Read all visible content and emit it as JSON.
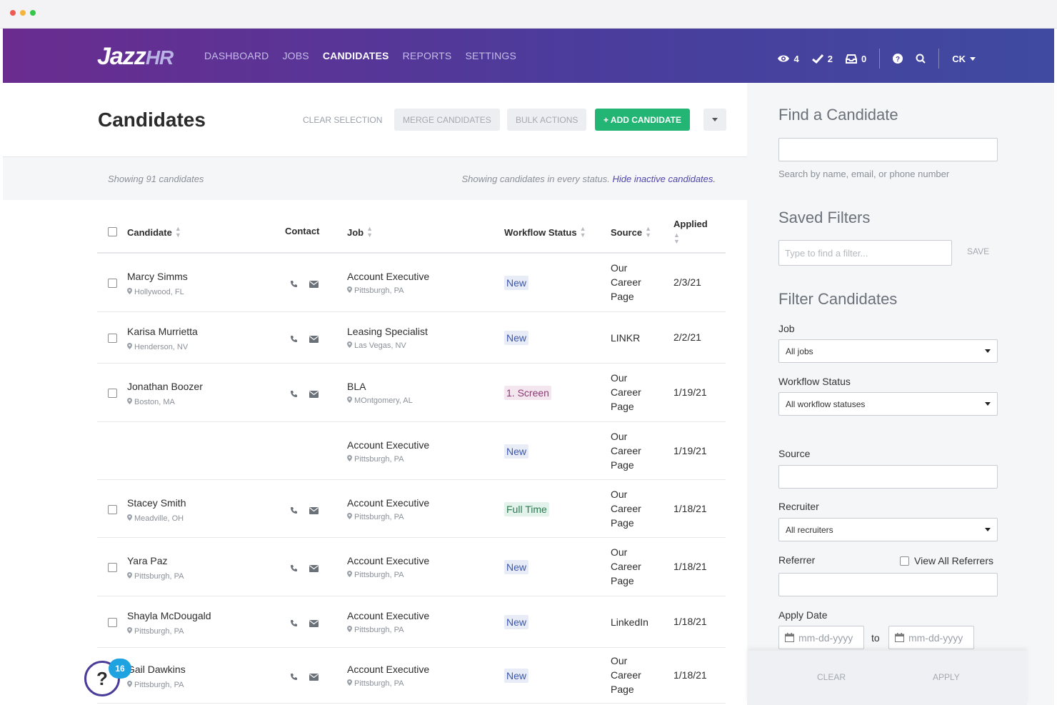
{
  "brand": {
    "logo_main": "Jazz",
    "logo_accent": "HR",
    "accent": "#4b3c9c",
    "primary_green": "#22b573"
  },
  "nav": {
    "links": [
      "DASHBOARD",
      "JOBS",
      "CANDIDATES",
      "REPORTS",
      "SETTINGS"
    ],
    "active": "CANDIDATES",
    "watch_count": "4",
    "check_count": "2",
    "inbox_count": "0",
    "user_initials": "CK"
  },
  "header": {
    "title": "Candidates",
    "clear_selection": "CLEAR SELECTION",
    "merge": "MERGE CANDIDATES",
    "bulk": "BULK ACTIONS",
    "add": "+ ADD CANDIDATE"
  },
  "status": {
    "showing": "Showing 91 candidates",
    "every_status": "Showing candidates in every status.",
    "hide_link": "Hide inactive candidates."
  },
  "table": {
    "columns": {
      "candidate": "Candidate",
      "contact": "Contact",
      "job": "Job",
      "workflow": "Workflow Status",
      "source": "Source",
      "applied": "Applied"
    },
    "rows": [
      {
        "name": "Marcy Simms",
        "location": "Hollywood, FL",
        "job": "Account Executive",
        "job_location": "Pittsburgh, PA",
        "status": "New",
        "status_kind": "new",
        "source": "Our Career Page",
        "applied": "2/3/21"
      },
      {
        "name": "Karisa Murrietta",
        "location": "Henderson, NV",
        "job": "Leasing Specialist",
        "job_location": "Las Vegas, NV",
        "status": "New",
        "status_kind": "new",
        "source": "LINKR",
        "applied": "2/2/21"
      },
      {
        "name": "Jonathan Boozer",
        "location": "Boston, MA",
        "job": "BLA",
        "job_location": "MOntgomery, AL",
        "status": "1. Screen",
        "status_kind": "screen",
        "source": "Our Career Page",
        "applied": "1/19/21"
      },
      {
        "name": "",
        "location": "",
        "job": "Account Executive",
        "job_location": "Pittsburgh, PA",
        "status": "New",
        "status_kind": "new",
        "source": "Our Career Page",
        "applied": "1/19/21"
      },
      {
        "name": "Stacey Smith",
        "location": "Meadville, OH",
        "job": "Account Executive",
        "job_location": "Pittsburgh, PA",
        "status": "Full Time",
        "status_kind": "full",
        "source": "Our Career Page",
        "applied": "1/18/21"
      },
      {
        "name": "Yara Paz",
        "location": "Pittsburgh, PA",
        "job": "Account Executive",
        "job_location": "Pittsburgh, PA",
        "status": "New",
        "status_kind": "new",
        "source": "Our Career Page",
        "applied": "1/18/21"
      },
      {
        "name": "Shayla McDougald",
        "location": "Pittsburgh, PA",
        "job": "Account Executive",
        "job_location": "Pittsburgh, PA",
        "status": "New",
        "status_kind": "new",
        "source": "LinkedIn",
        "applied": "1/18/21"
      },
      {
        "name": "Gail Dawkins",
        "location": "Pittsburgh, PA",
        "job": "Account Executive",
        "job_location": "Pittsburgh, PA",
        "status": "New",
        "status_kind": "new",
        "source": "Our Career Page",
        "applied": "1/18/21"
      }
    ]
  },
  "sidebar": {
    "find_title": "Find a Candidate",
    "find_help": "Search by name, email, or phone number",
    "saved_title": "Saved Filters",
    "saved_placeholder": "Type to find a filter...",
    "save": "SAVE",
    "filter_title": "Filter Candidates",
    "job_label": "Job",
    "job_value": "All jobs",
    "workflow_label": "Workflow Status",
    "workflow_value": "All workflow statuses",
    "source_label": "Source",
    "recruiter_label": "Recruiter",
    "recruiter_value": "All recruiters",
    "referrer_label": "Referrer",
    "view_all_referrers": "View All Referrers",
    "apply_date_label": "Apply Date",
    "date_placeholder": "mm-dd-yyyy",
    "to": "to",
    "clear": "CLEAR",
    "apply": "APPLY"
  },
  "help": {
    "badge_count": "16",
    "symbol": "?"
  }
}
